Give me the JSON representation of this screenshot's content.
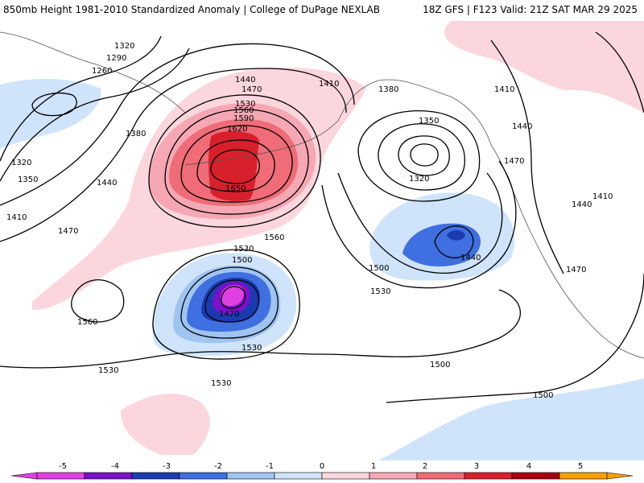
{
  "header": {
    "left_title": "850mb Height 1981-2010 Standardized Anomaly | College of DuPage NEXLAB",
    "right_title": "18Z GFS | F123 Valid: 21Z SAT MAR 29 2025"
  },
  "colors": {
    "anom_neg5": "#e040e0",
    "anom_neg4": "#7a10c8",
    "anom_neg3": "#1a3ab0",
    "anom_neg2": "#3f6fe0",
    "anom_neg1": "#9fc4f0",
    "anom_neg0": "#cfe4fa",
    "anom_pos0": "#fbd6dc",
    "anom_pos1": "#f5a8b4",
    "anom_pos2": "#ef6c78",
    "anom_pos3": "#d8202c",
    "anom_pos4": "#a80010",
    "anom_pos5": "#f5a000",
    "coast": "#555555",
    "contour": "#000000"
  },
  "contour_labels": [
    "1320",
    "1290",
    "1260",
    "1380",
    "1320",
    "1350",
    "1440",
    "1410",
    "1470",
    "1440",
    "1470",
    "1530",
    "1560",
    "1590",
    "1620",
    "1650",
    "1410",
    "1560",
    "1380",
    "1350",
    "1320",
    "1410",
    "1440",
    "1470",
    "1410",
    "1440",
    "1500",
    "1440",
    "1470",
    "1530",
    "1500",
    "1470",
    "1560",
    "1530",
    "1530",
    "1530",
    "1530",
    "1500",
    "1500"
  ],
  "colorbar": {
    "ticks": [
      "-5",
      "-4",
      "-3",
      "-2",
      "-1",
      "0",
      "1",
      "2",
      "3",
      "4",
      "5"
    ]
  }
}
